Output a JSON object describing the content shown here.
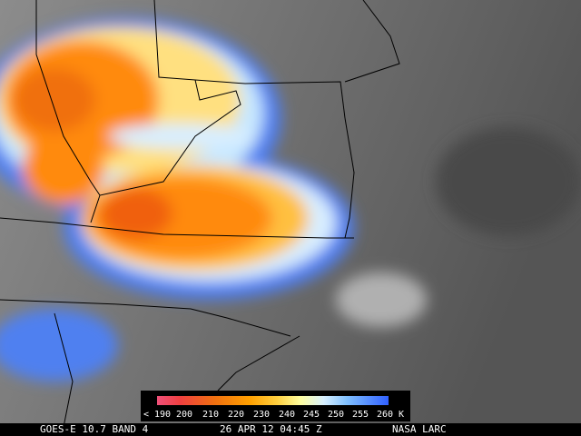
{
  "colorbar": {
    "labels": [
      "< 190",
      "200",
      "210",
      "220",
      "230",
      "240",
      "245",
      "250",
      "255",
      "260 K"
    ]
  },
  "caption": {
    "satellite": "GOES-E 10.7 BAND 4",
    "time": "26 APR 12 04:45 Z",
    "source": "NASA LARC"
  }
}
